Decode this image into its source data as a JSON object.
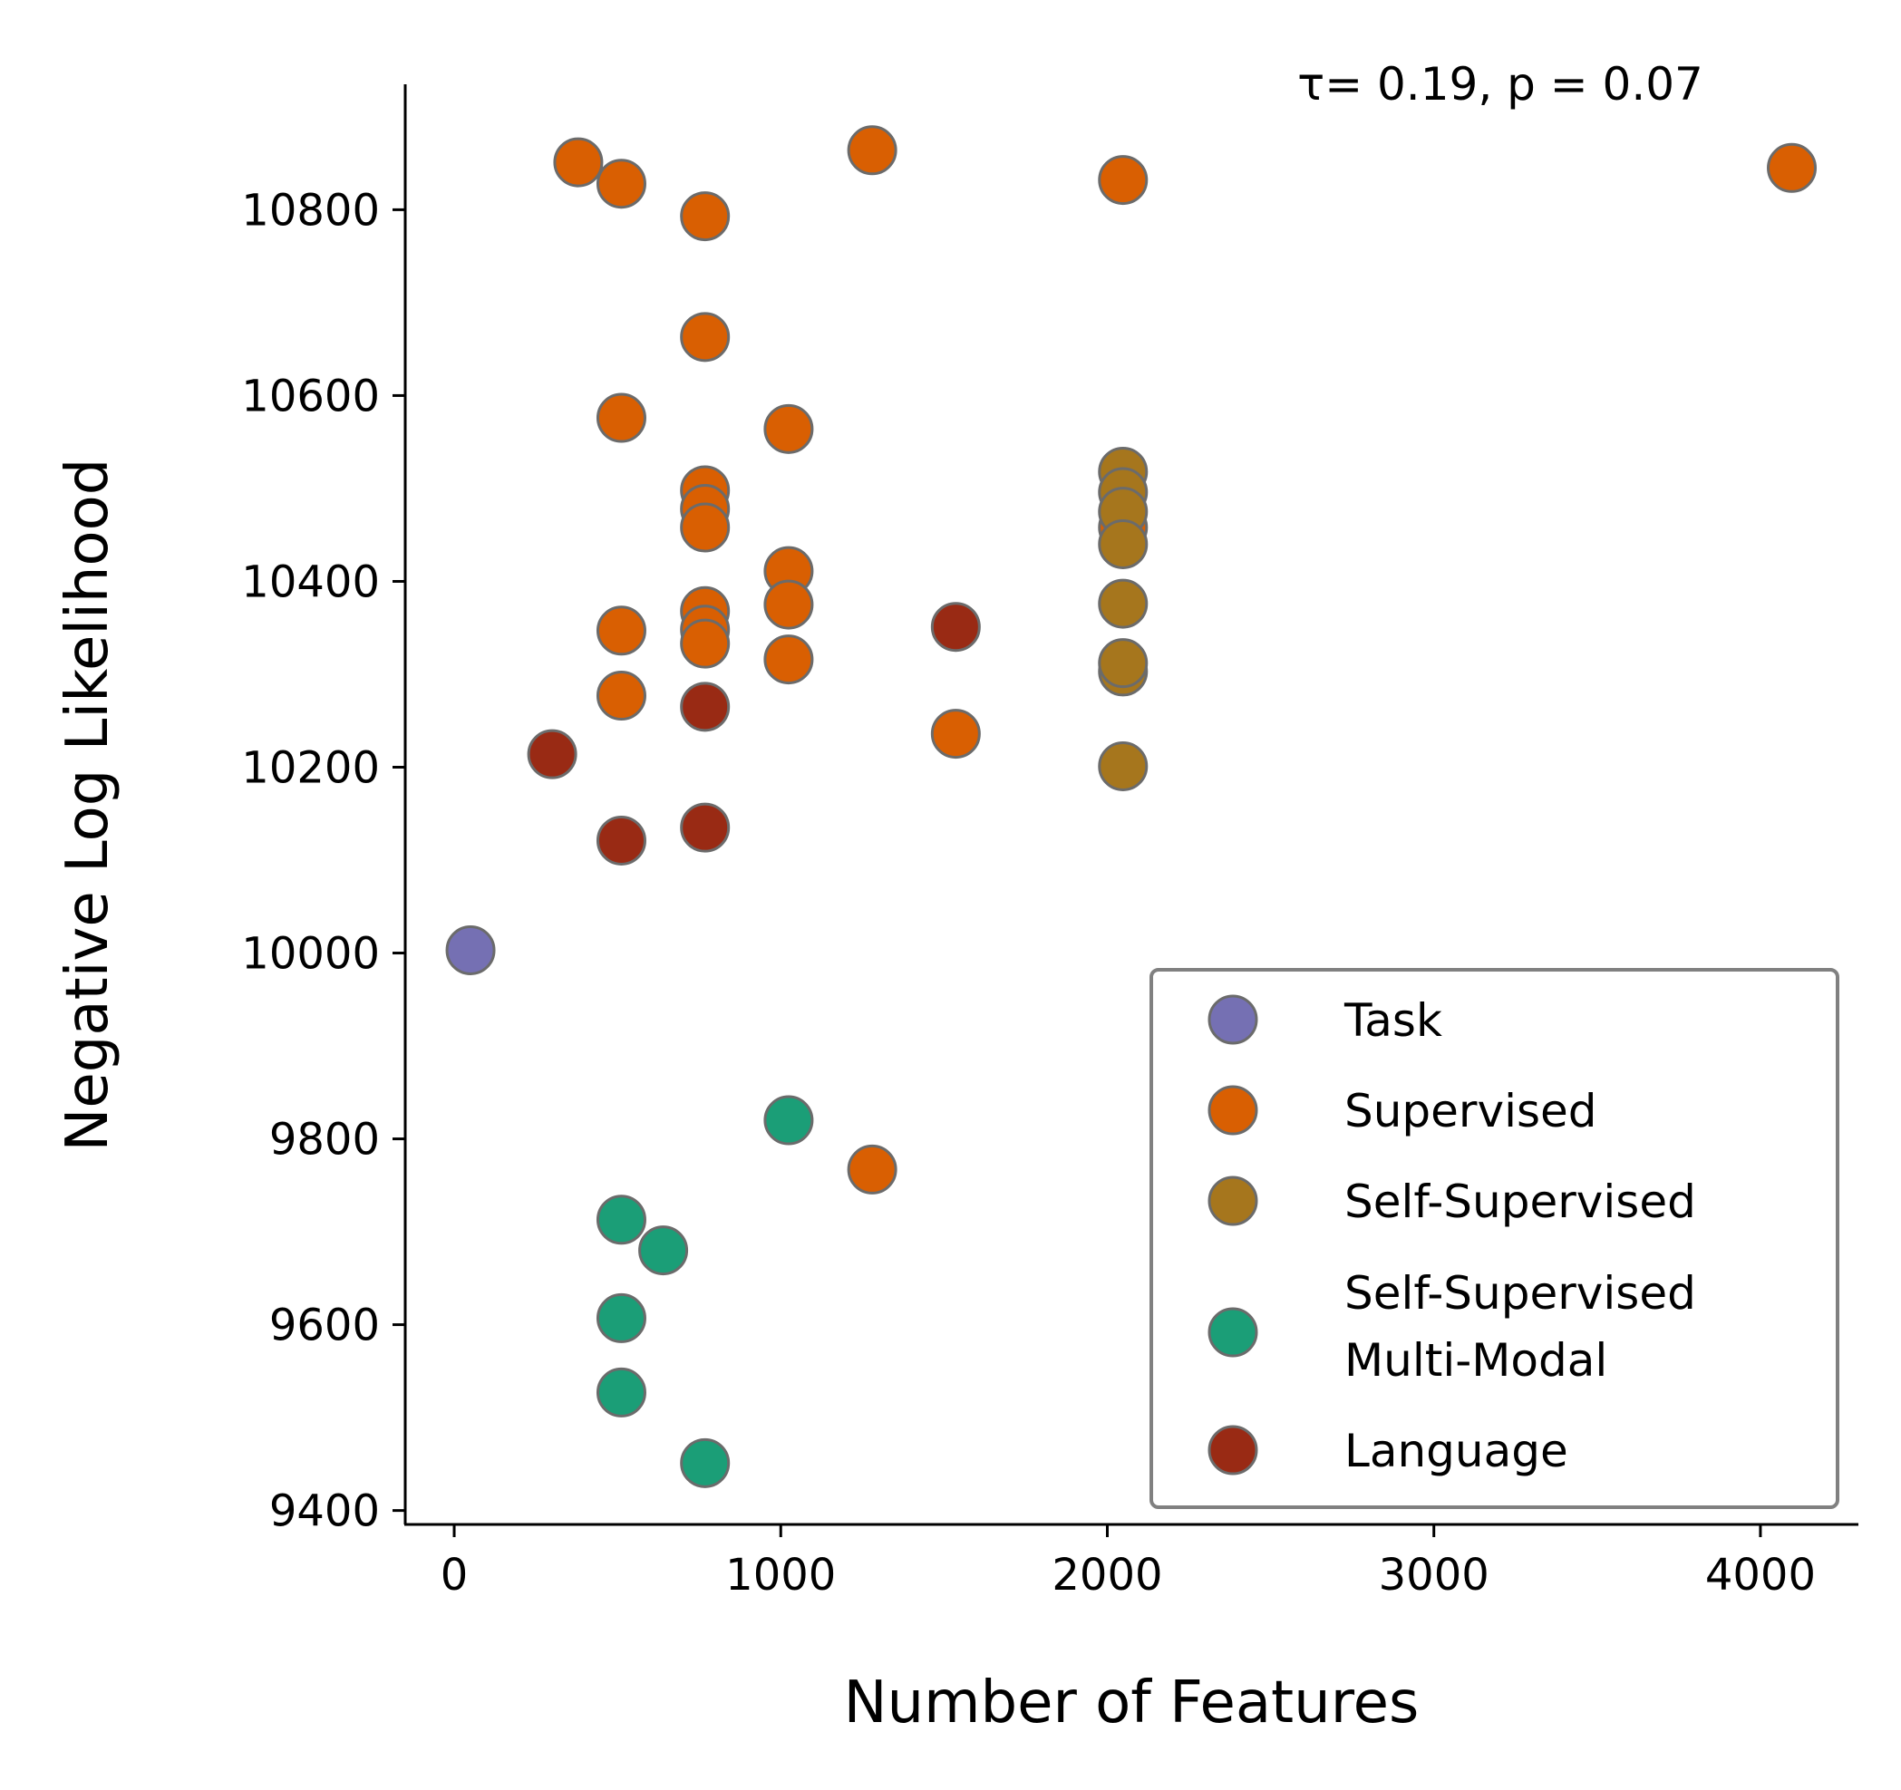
{
  "chart_data": {
    "type": "scatter",
    "xlabel": "Number of Features",
    "ylabel": "Negative Log Likelihood",
    "xlim": [
      -150,
      4300
    ],
    "ylim": [
      9385,
      10935
    ],
    "x_ticks": [
      0,
      1000,
      2000,
      3000,
      4000
    ],
    "y_ticks": [
      9400,
      9600,
      9800,
      10000,
      10200,
      10400,
      10600,
      10800
    ],
    "annotation": "τ= 0.19, p = 0.07",
    "legend_position": "lower-right",
    "grid": false,
    "marker_edge_color": "#6b6b6b",
    "series": [
      {
        "name": "Task",
        "label_lines": [
          "Task"
        ],
        "color": "#7570b3",
        "points": [
          [
            50,
            10003
          ]
        ]
      },
      {
        "name": "Supervised",
        "label_lines": [
          "Supervised"
        ],
        "color": "#d95f02",
        "points": [
          [
            380,
            10851
          ],
          [
            512,
            10828
          ],
          [
            768,
            10793
          ],
          [
            1280,
            10864
          ],
          [
            2048,
            10832
          ],
          [
            4096,
            10845
          ],
          [
            768,
            10663
          ],
          [
            512,
            10576
          ],
          [
            1024,
            10564
          ],
          [
            768,
            10498
          ],
          [
            768,
            10478
          ],
          [
            768,
            10458
          ],
          [
            1024,
            10411
          ],
          [
            1024,
            10375
          ],
          [
            1024,
            10316
          ],
          [
            768,
            10368
          ],
          [
            768,
            10348
          ],
          [
            768,
            10333
          ],
          [
            512,
            10347
          ],
          [
            512,
            10277
          ],
          [
            1536,
            10236
          ],
          [
            2048,
            10458
          ],
          [
            1280,
            9767
          ]
        ]
      },
      {
        "name": "Self-Supervised",
        "label_lines": [
          "Self-Supervised"
        ],
        "color": "#a6761d",
        "points": [
          [
            2048,
            10518
          ],
          [
            2048,
            10496
          ],
          [
            2048,
            10475
          ],
          [
            2048,
            10440
          ],
          [
            2048,
            10376
          ],
          [
            2048,
            10303
          ],
          [
            2048,
            10312
          ],
          [
            2048,
            10201
          ]
        ]
      },
      {
        "name": "Self-Supervised Multi-Modal",
        "label_lines": [
          "Self-Supervised",
          "Multi-Modal"
        ],
        "color": "#1b9e77",
        "points": [
          [
            1024,
            9820
          ],
          [
            512,
            9713
          ],
          [
            640,
            9680
          ],
          [
            512,
            9607
          ],
          [
            512,
            9527
          ],
          [
            768,
            9451
          ]
        ]
      },
      {
        "name": "Language",
        "label_lines": [
          "Language"
        ],
        "color": "#992a14",
        "points": [
          [
            300,
            10214
          ],
          [
            768,
            10265
          ],
          [
            1536,
            10351
          ],
          [
            512,
            10121
          ],
          [
            768,
            10135
          ]
        ]
      }
    ]
  }
}
